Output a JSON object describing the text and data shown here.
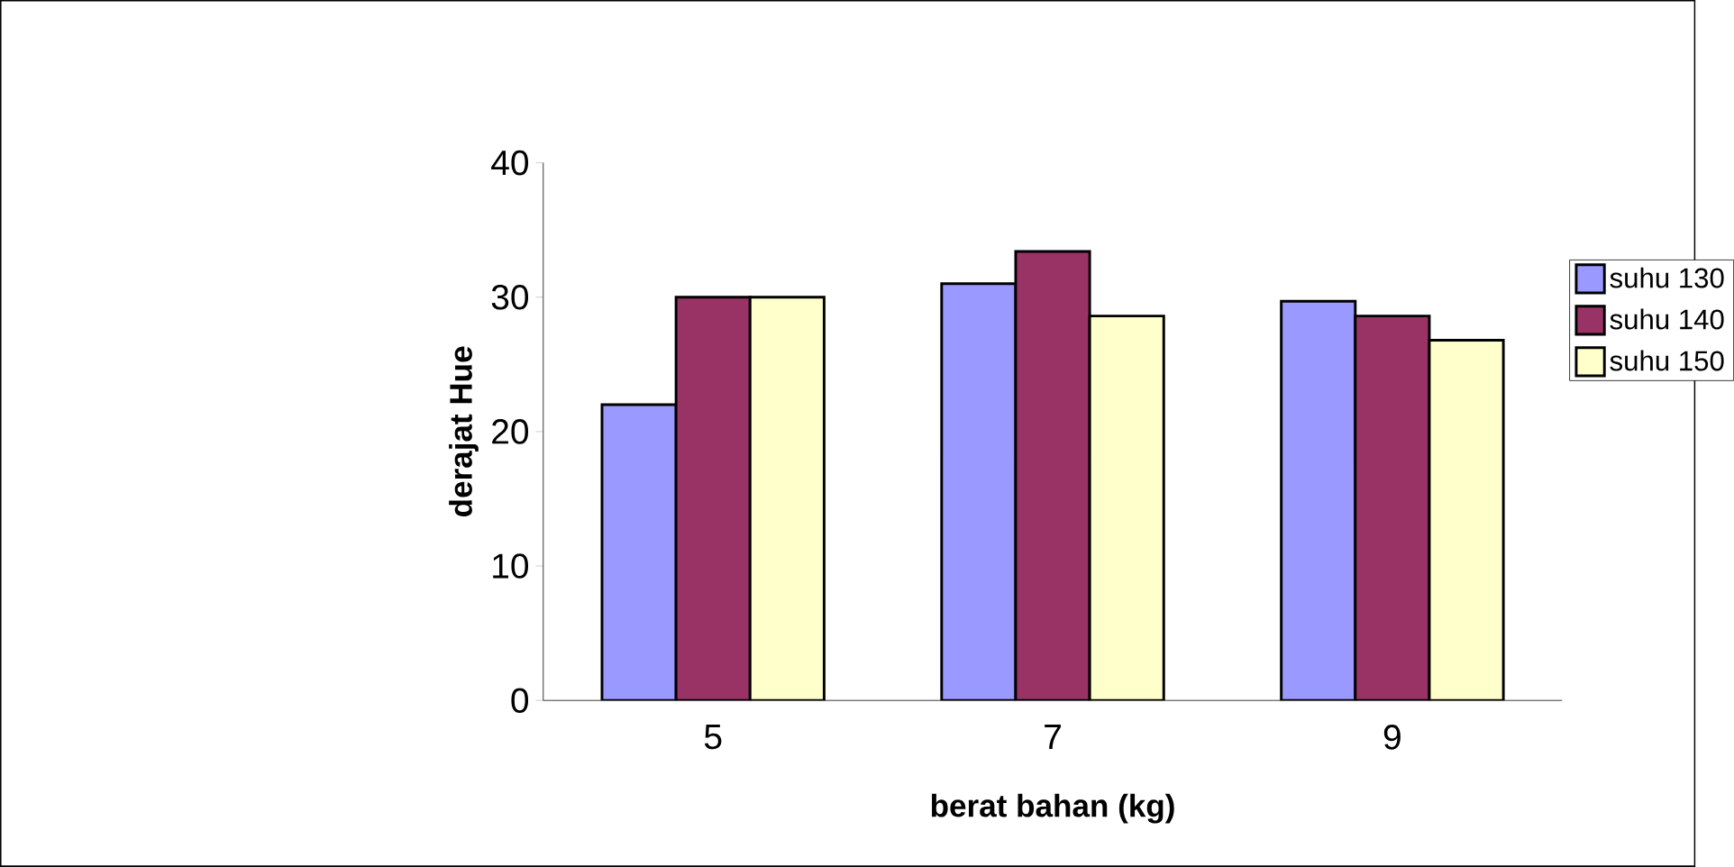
{
  "chart_data": {
    "type": "bar",
    "xlabel": "berat bahan (kg)",
    "ylabel": "derajat Hue",
    "categories": [
      "5",
      "7",
      "9"
    ],
    "series": [
      {
        "name": "suhu 130",
        "color": "#9999ff",
        "values": [
          22.0,
          31.0,
          29.7
        ]
      },
      {
        "name": "suhu 140",
        "color": "#993366",
        "values": [
          30.0,
          33.4,
          28.6
        ]
      },
      {
        "name": "suhu 150",
        "color": "#ffffcc",
        "values": [
          30.0,
          28.6,
          26.8
        ]
      }
    ],
    "ylim": [
      0,
      40
    ],
    "yticks": [
      0,
      10,
      20,
      30,
      40
    ],
    "grid": false,
    "legend": "right"
  }
}
